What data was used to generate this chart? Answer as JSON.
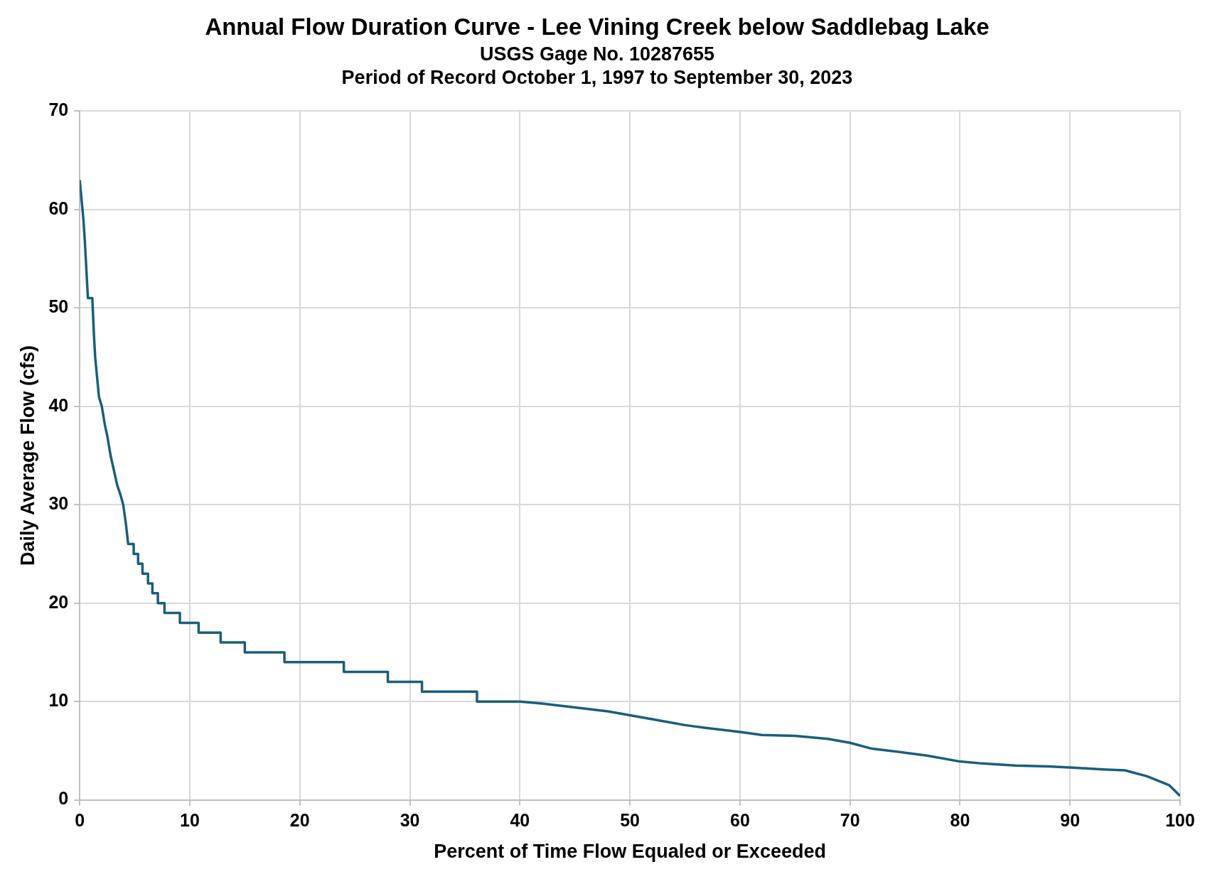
{
  "chart_data": {
    "type": "line",
    "title": "Annual Flow Duration Curve - Lee Vining Creek below Saddlebag Lake",
    "subtitle": "USGS Gage No. 10287655\nPeriod of Record October 1, 1997 to September 30, 2023",
    "xlabel": "Percent of Time Flow Equaled or Exceeded",
    "ylabel": "Daily Average Flow (cfs)",
    "xlim": [
      0,
      100
    ],
    "xticks": [
      0,
      10,
      20,
      30,
      40,
      50,
      60,
      70,
      80,
      90,
      100
    ],
    "ylim": [
      0,
      70
    ],
    "yticks": [
      0,
      10,
      20,
      30,
      40,
      50,
      60,
      70
    ],
    "grid": true,
    "legend": false,
    "marker": "none",
    "line_style": "solid",
    "series": [
      {
        "color": "#1b5e7b",
        "x": [
          0,
          0.33,
          0.45,
          0.74,
          1.14,
          1.3,
          1.4,
          1.74,
          2.0,
          2.3,
          2.5,
          2.8,
          3.0,
          3.4,
          3.7,
          3.95,
          4.2,
          4.4,
          4.4,
          4.9,
          4.9,
          5.3,
          5.3,
          5.7,
          5.7,
          6.2,
          6.2,
          6.6,
          6.6,
          7.1,
          7.1,
          7.7,
          7.7,
          9.1,
          9.1,
          10.8,
          10.8,
          12.8,
          12.8,
          15.0,
          15.0,
          18.6,
          18.6,
          24.0,
          24.0,
          28.0,
          28.0,
          31.1,
          31.1,
          36.1,
          36.1,
          40,
          42,
          45,
          48,
          50,
          52,
          55,
          57,
          60,
          62,
          65,
          68,
          70,
          72,
          75,
          77,
          80,
          82,
          85,
          88,
          90,
          93,
          95,
          97,
          99,
          100
        ],
        "values": [
          63,
          59,
          57,
          51,
          51,
          47,
          45,
          41,
          40,
          38,
          37,
          35,
          34,
          32,
          31,
          30,
          28,
          26,
          26,
          26,
          25,
          25,
          24,
          24,
          23,
          23,
          22,
          22,
          21,
          21,
          20,
          20,
          19,
          19,
          18,
          18,
          17,
          17,
          16,
          16,
          15,
          15,
          14,
          14,
          13,
          13,
          12,
          12,
          11,
          11,
          10,
          10,
          9.8,
          9.4,
          9.0,
          8.6,
          8.2,
          7.6,
          7.3,
          6.9,
          6.6,
          6.5,
          6.2,
          5.8,
          5.2,
          4.8,
          4.5,
          3.9,
          3.7,
          3.5,
          3.4,
          3.3,
          3.1,
          3.0,
          2.4,
          1.5,
          0.4
        ]
      }
    ]
  }
}
